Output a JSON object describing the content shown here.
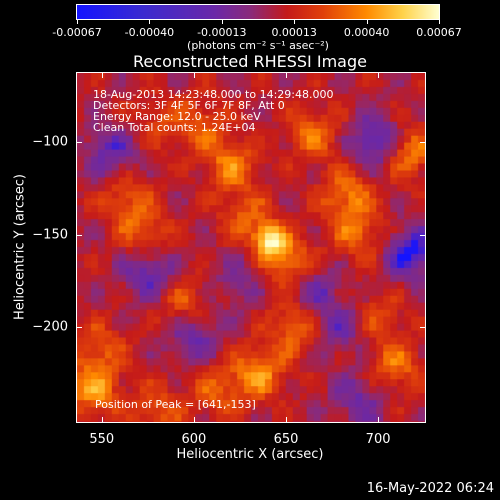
{
  "colorbar": {
    "ticks": [
      "-0.00067",
      "-0.00040",
      "-0.00013",
      "0.00013",
      "0.00040",
      "0.00067"
    ],
    "unit": "(photons cm⁻² s⁻¹ asec⁻²)"
  },
  "title": "Reconstructed RHESSI Image",
  "info": {
    "line1": "18-Aug-2013 14:23:48.000 to 14:29:48.000",
    "line2": "Detectors: 3F 4F 5F 6F 7F 8F, Att 0",
    "line3": "Energy Range: 12.0 - 25.0 keV",
    "line4": "Clean     Total counts: 1.24E+04",
    "peak": "Position of Peak = [641,-153]"
  },
  "footer": "16-May-2022 06:24",
  "chart_data": {
    "type": "heatmap",
    "title": "Reconstructed RHESSI Image",
    "xlabel": "Heliocentric X (arcsec)",
    "ylabel": "Heliocentric Y (arcsec)",
    "xlim": [
      536,
      726
    ],
    "ylim": [
      -252,
      -62
    ],
    "xticks": [
      550,
      600,
      650,
      700
    ],
    "xtick_labels": [
      "550",
      "600",
      "650",
      "700"
    ],
    "yticks": [
      -100,
      -150,
      -200
    ],
    "ytick_labels": [
      "−100",
      "−150",
      "−200"
    ],
    "colorbar_range": [
      -0.00067,
      0.00067
    ],
    "peak_position": [
      641,
      -153
    ],
    "colormap": [
      "#1414ff",
      "#6a28a8",
      "#8a2a7a",
      "#c41a1a",
      "#e0400a",
      "#ff8a00",
      "#ffd24a",
      "#ffffd0"
    ],
    "sources": [
      {
        "x": 641,
        "y": -153,
        "value": 0.00067
      },
      {
        "x": 651,
        "y": -165,
        "value": 0.00045
      },
      {
        "x": 620,
        "y": -112,
        "value": 0.0004
      },
      {
        "x": 628,
        "y": -140,
        "value": 0.0003
      },
      {
        "x": 716,
        "y": -105,
        "value": 0.00045
      },
      {
        "x": 683,
        "y": -128,
        "value": 0.0004
      },
      {
        "x": 690,
        "y": -150,
        "value": 0.00035
      },
      {
        "x": 665,
        "y": -95,
        "value": 0.00035
      },
      {
        "x": 655,
        "y": -200,
        "value": 0.00038
      },
      {
        "x": 635,
        "y": -225,
        "value": 0.00045
      },
      {
        "x": 545,
        "y": -235,
        "value": 0.00045
      },
      {
        "x": 548,
        "y": -212,
        "value": 0.0003
      },
      {
        "x": 573,
        "y": -150,
        "value": 0.00032
      },
      {
        "x": 563,
        "y": -130,
        "value": 0.0003
      },
      {
        "x": 595,
        "y": -188,
        "value": 0.0003
      },
      {
        "x": 710,
        "y": -222,
        "value": 0.00035
      },
      {
        "x": 700,
        "y": -195,
        "value": 0.00025
      },
      {
        "x": 603,
        "y": -90,
        "value": 0.0003
      },
      {
        "x": 580,
        "y": -88,
        "value": 0.00022
      },
      {
        "x": 612,
        "y": -235,
        "value": 0.0003
      },
      {
        "x": 580,
        "y": -245,
        "value": 0.00028
      },
      {
        "x": 700,
        "y": -100,
        "value": -0.0005
      },
      {
        "x": 718,
        "y": -160,
        "value": -0.0005
      },
      {
        "x": 575,
        "y": -170,
        "value": -0.0004
      },
      {
        "x": 600,
        "y": -205,
        "value": -0.00035
      },
      {
        "x": 665,
        "y": -180,
        "value": -0.0003
      },
      {
        "x": 555,
        "y": -105,
        "value": -0.00035
      },
      {
        "x": 680,
        "y": -200,
        "value": -0.0003
      },
      {
        "x": 690,
        "y": -240,
        "value": -0.0003
      },
      {
        "x": 625,
        "y": -175,
        "value": -0.0002
      }
    ]
  }
}
